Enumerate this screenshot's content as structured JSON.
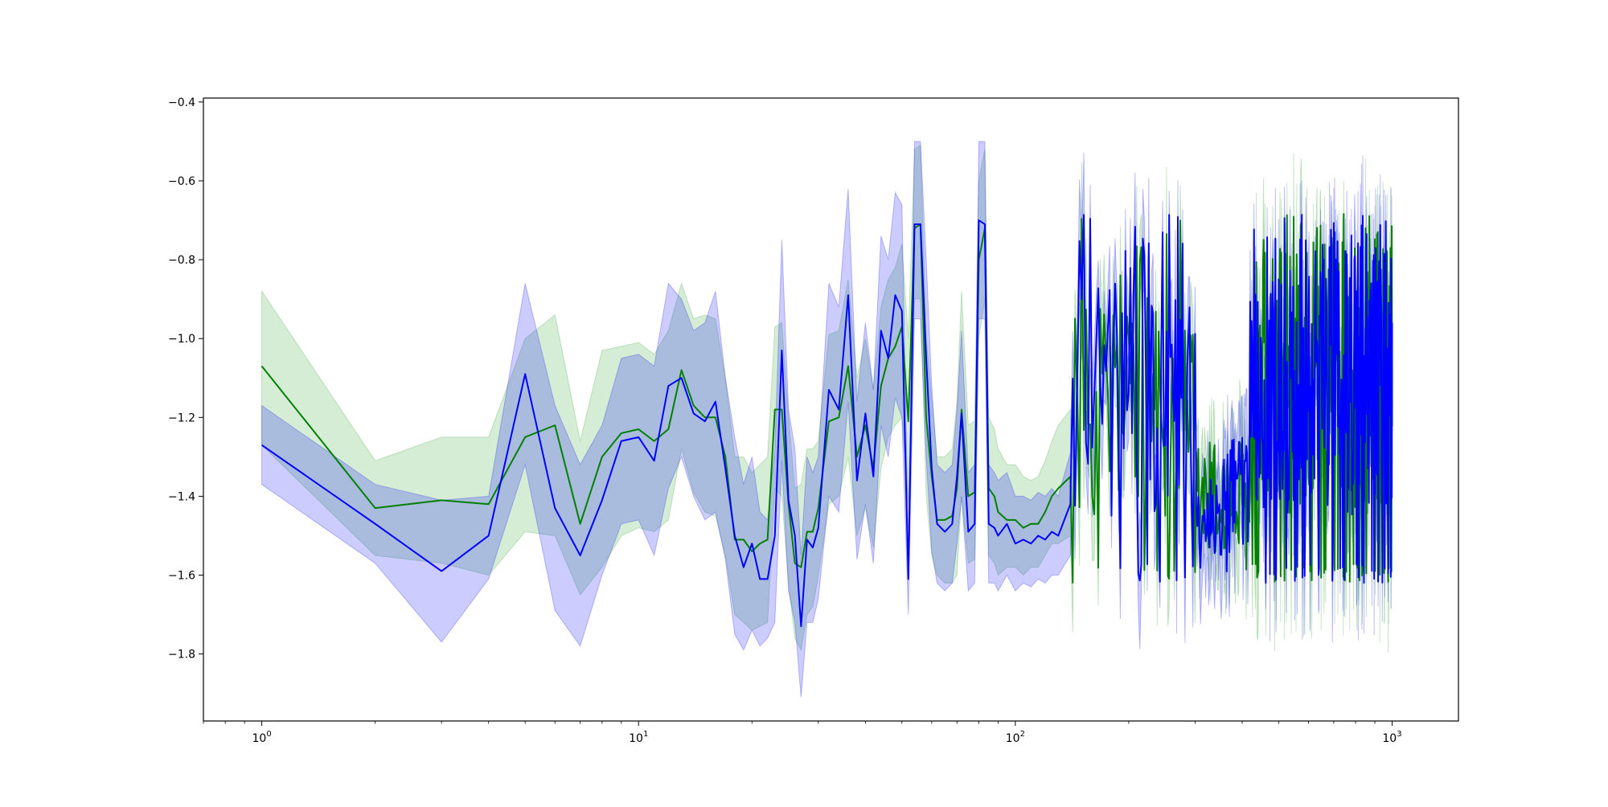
{
  "chart_data": {
    "type": "line",
    "title": "",
    "xlabel": "",
    "ylabel": "",
    "x_scale": "log",
    "xlim": [
      0.7,
      1500
    ],
    "ylim": [
      -1.97,
      -0.39
    ],
    "grid": false,
    "legend": "none",
    "x_tick_labels": [
      {
        "base": "10",
        "exp": "0",
        "value": 1
      },
      {
        "base": "10",
        "exp": "1",
        "value": 10
      },
      {
        "base": "10",
        "exp": "2",
        "value": 100
      },
      {
        "base": "10",
        "exp": "3",
        "value": 1000
      }
    ],
    "y_ticks": [
      -1.8,
      -1.6,
      -1.4,
      -1.2,
      -1.0,
      -0.8,
      -0.6,
      -0.4
    ],
    "y_tick_labels": [
      "−1.8",
      "−1.6",
      "−1.4",
      "−1.2",
      "−1.0",
      "−0.8",
      "−0.6",
      "−0.4"
    ],
    "series": [
      {
        "color": "#008000",
        "band_color": "#2ca02c",
        "x": [
          1,
          2,
          3,
          4,
          5,
          6,
          7,
          8,
          9,
          10,
          11,
          12,
          13,
          14,
          15,
          16,
          17,
          18,
          19,
          20,
          21,
          22,
          23,
          24,
          25,
          26,
          27,
          28,
          29,
          30,
          32,
          34,
          36,
          38,
          40,
          42,
          44,
          46,
          48,
          50,
          52,
          54,
          56,
          58,
          60,
          62,
          65,
          68,
          70,
          72,
          75,
          78,
          80,
          83,
          85,
          88,
          90,
          95,
          100,
          105,
          110,
          115,
          120,
          125,
          130,
          140
        ],
        "values": [
          -1.07,
          -1.43,
          -1.41,
          -1.42,
          -1.25,
          -1.22,
          -1.47,
          -1.3,
          -1.24,
          -1.23,
          -1.26,
          -1.23,
          -1.08,
          -1.17,
          -1.2,
          -1.2,
          -1.3,
          -1.51,
          -1.51,
          -1.54,
          -1.52,
          -1.51,
          -1.18,
          -1.18,
          -1.42,
          -1.57,
          -1.58,
          -1.49,
          -1.49,
          -1.43,
          -1.21,
          -1.2,
          -1.07,
          -1.3,
          -1.22,
          -1.33,
          -1.12,
          -1.05,
          -1.02,
          -0.97,
          -1.21,
          -0.72,
          -0.71,
          -1.2,
          -1.35,
          -1.46,
          -1.46,
          -1.45,
          -1.38,
          -1.18,
          -1.4,
          -1.39,
          -0.8,
          -0.72,
          -1.38,
          -1.4,
          -1.44,
          -1.46,
          -1.46,
          -1.48,
          -1.47,
          -1.47,
          -1.44,
          -1.4,
          -1.38,
          -1.35
        ],
        "lower": [
          -1.27,
          -1.55,
          -1.57,
          -1.6,
          -1.49,
          -1.5,
          -1.65,
          -1.58,
          -1.5,
          -1.48,
          -1.49,
          -1.46,
          -1.28,
          -1.39,
          -1.44,
          -1.45,
          -1.55,
          -1.7,
          -1.72,
          -1.74,
          -1.73,
          -1.72,
          -1.38,
          -1.4,
          -1.62,
          -1.76,
          -1.79,
          -1.7,
          -1.68,
          -1.6,
          -1.42,
          -1.4,
          -1.3,
          -1.5,
          -1.43,
          -1.53,
          -1.33,
          -1.25,
          -1.22,
          -1.2,
          -1.42,
          -0.9,
          -0.9,
          -1.4,
          -1.55,
          -1.6,
          -1.62,
          -1.62,
          -1.6,
          -1.4,
          -1.57,
          -1.56,
          -1.0,
          -0.9,
          -1.55,
          -1.57,
          -1.6,
          -1.58,
          -1.58,
          -1.6,
          -1.58,
          -1.58,
          -1.55,
          -1.52,
          -1.52,
          -1.5
        ],
        "upper": [
          -0.88,
          -1.31,
          -1.25,
          -1.25,
          -1.0,
          -0.94,
          -1.26,
          -1.03,
          -1.02,
          -1.01,
          -1.04,
          -0.98,
          -0.86,
          -0.95,
          -0.94,
          -0.95,
          -1.1,
          -1.3,
          -1.3,
          -1.34,
          -1.32,
          -1.3,
          -0.97,
          -0.96,
          -1.2,
          -1.38,
          -1.37,
          -1.28,
          -1.28,
          -1.26,
          -0.99,
          -0.98,
          -0.85,
          -1.1,
          -1.0,
          -1.13,
          -0.92,
          -0.85,
          -0.82,
          -0.76,
          -1.0,
          -0.52,
          -0.51,
          -1.0,
          -1.15,
          -1.3,
          -1.3,
          -1.28,
          -1.16,
          -0.88,
          -1.22,
          -1.21,
          -0.6,
          -0.52,
          -1.2,
          -1.23,
          -1.28,
          -1.32,
          -1.32,
          -1.35,
          -1.36,
          -1.35,
          -1.31,
          -1.26,
          -1.22,
          -1.18
        ]
      },
      {
        "color": "#0000ff",
        "band_color": "#0000ff",
        "x": [
          1,
          2,
          3,
          4,
          5,
          6,
          7,
          8,
          9,
          10,
          11,
          12,
          13,
          14,
          15,
          16,
          17,
          18,
          19,
          20,
          21,
          22,
          23,
          24,
          25,
          26,
          27,
          28,
          29,
          30,
          32,
          34,
          36,
          38,
          40,
          42,
          44,
          46,
          48,
          50,
          52,
          54,
          56,
          58,
          60,
          62,
          65,
          68,
          70,
          72,
          75,
          78,
          80,
          83,
          85,
          88,
          90,
          95,
          100,
          105,
          110,
          115,
          120,
          125,
          130,
          140
        ],
        "values": [
          -1.27,
          -1.47,
          -1.59,
          -1.5,
          -1.09,
          -1.43,
          -1.55,
          -1.41,
          -1.26,
          -1.25,
          -1.31,
          -1.12,
          -1.1,
          -1.19,
          -1.21,
          -1.16,
          -1.33,
          -1.5,
          -1.58,
          -1.52,
          -1.61,
          -1.61,
          -1.5,
          -1.03,
          -1.41,
          -1.5,
          -1.73,
          -1.51,
          -1.53,
          -1.48,
          -1.13,
          -1.18,
          -0.89,
          -1.36,
          -1.19,
          -1.35,
          -0.98,
          -1.05,
          -0.89,
          -0.93,
          -1.61,
          -0.71,
          -0.71,
          -1.05,
          -1.33,
          -1.47,
          -1.49,
          -1.47,
          -1.35,
          -1.19,
          -1.49,
          -1.47,
          -0.7,
          -0.71,
          -1.47,
          -1.48,
          -1.5,
          -1.47,
          -1.52,
          -1.51,
          -1.52,
          -1.5,
          -1.51,
          -1.49,
          -1.5,
          -1.42
        ],
        "lower": [
          -1.37,
          -1.57,
          -1.77,
          -1.61,
          -1.32,
          -1.69,
          -1.78,
          -1.6,
          -1.47,
          -1.46,
          -1.55,
          -1.38,
          -1.3,
          -1.4,
          -1.46,
          -1.44,
          -1.56,
          -1.75,
          -1.79,
          -1.74,
          -1.78,
          -1.76,
          -1.72,
          -1.31,
          -1.64,
          -1.72,
          -1.91,
          -1.72,
          -1.72,
          -1.66,
          -1.4,
          -1.44,
          -1.16,
          -1.56,
          -1.42,
          -1.57,
          -1.22,
          -1.3,
          -1.15,
          -1.2,
          -1.7,
          -0.95,
          -0.95,
          -1.3,
          -1.54,
          -1.62,
          -1.64,
          -1.62,
          -1.52,
          -1.4,
          -1.64,
          -1.62,
          -0.95,
          -0.95,
          -1.62,
          -1.62,
          -1.64,
          -1.6,
          -1.64,
          -1.62,
          -1.63,
          -1.61,
          -1.62,
          -1.6,
          -1.6,
          -1.55
        ],
        "upper": [
          -1.17,
          -1.37,
          -1.41,
          -1.4,
          -0.86,
          -1.17,
          -1.32,
          -1.22,
          -1.05,
          -1.04,
          -1.07,
          -0.86,
          -0.9,
          -0.98,
          -0.96,
          -0.88,
          -1.1,
          -1.25,
          -1.37,
          -1.3,
          -1.44,
          -1.46,
          -1.28,
          -0.75,
          -1.18,
          -1.28,
          -1.55,
          -1.3,
          -1.34,
          -1.3,
          -0.86,
          -0.92,
          -0.62,
          -1.16,
          -0.96,
          -1.13,
          -0.74,
          -0.8,
          -0.63,
          -0.66,
          -1.52,
          -0.5,
          -0.5,
          -0.8,
          -1.12,
          -1.32,
          -1.34,
          -1.32,
          -1.18,
          -0.98,
          -1.34,
          -1.32,
          -0.5,
          -0.5,
          -1.32,
          -1.34,
          -1.36,
          -1.34,
          -1.4,
          -1.4,
          -1.41,
          -1.39,
          -1.4,
          -1.38,
          -1.4,
          -1.29
        ]
      }
    ]
  }
}
